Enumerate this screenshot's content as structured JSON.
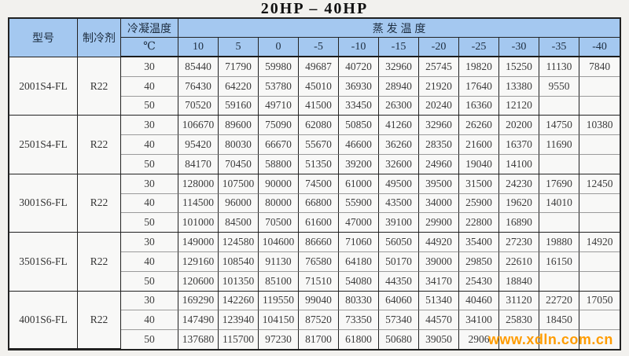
{
  "page": {
    "title": "20HP – 40HP",
    "watermark": "www.xdln.com.cn"
  },
  "colors": {
    "header_bg": "#a4c8f0",
    "watermark_orange": "#ff9c00",
    "grid_dark": "#222222",
    "grid_gray": "#9b9b9b"
  },
  "table": {
    "headers": {
      "model": "型号",
      "refrigerant": "制冷剂",
      "condensing": "冷凝温度",
      "condensing_unit": "℃",
      "evaporating": "蒸 发 温 度"
    },
    "evap_temps": [
      "10",
      "5",
      "0",
      "-5",
      "-10",
      "-15",
      "-20",
      "-25",
      "-30",
      "-35",
      "-40"
    ],
    "blocks": [
      {
        "model": "2001S4-FL",
        "refrigerant": "R22",
        "rows": [
          {
            "cond": "30",
            "values": [
              "85440",
              "71790",
              "59980",
              "49687",
              "40720",
              "32960",
              "25745",
              "19820",
              "15250",
              "11130",
              "7840"
            ]
          },
          {
            "cond": "40",
            "values": [
              "76430",
              "64220",
              "53780",
              "45010",
              "36930",
              "28940",
              "21920",
              "17640",
              "13380",
              "9550",
              ""
            ]
          },
          {
            "cond": "50",
            "values": [
              "70520",
              "59160",
              "49710",
              "41500",
              "33450",
              "26300",
              "20240",
              "16360",
              "12120",
              "",
              ""
            ]
          }
        ]
      },
      {
        "model": "2501S4-FL",
        "refrigerant": "R22",
        "rows": [
          {
            "cond": "30",
            "values": [
              "106670",
              "89600",
              "75090",
              "62080",
              "50850",
              "41260",
              "32960",
              "26260",
              "20200",
              "14750",
              "10380"
            ]
          },
          {
            "cond": "40",
            "values": [
              "95420",
              "80030",
              "66670",
              "55670",
              "46600",
              "36260",
              "28350",
              "21600",
              "16370",
              "11690",
              ""
            ]
          },
          {
            "cond": "50",
            "values": [
              "84170",
              "70450",
              "58800",
              "51350",
              "39200",
              "32600",
              "24960",
              "19040",
              "14100",
              "",
              ""
            ]
          }
        ]
      },
      {
        "model": "3001S6-FL",
        "refrigerant": "R22",
        "rows": [
          {
            "cond": "30",
            "values": [
              "128000",
              "107500",
              "90000",
              "74500",
              "61000",
              "49500",
              "39500",
              "31500",
              "24230",
              "17690",
              "12450"
            ]
          },
          {
            "cond": "40",
            "values": [
              "114500",
              "96000",
              "80000",
              "66800",
              "55900",
              "43500",
              "34000",
              "25900",
              "19620",
              "14010",
              ""
            ]
          },
          {
            "cond": "50",
            "values": [
              "101000",
              "84500",
              "70500",
              "61600",
              "47000",
              "39100",
              "29900",
              "22800",
              "16890",
              "",
              ""
            ]
          }
        ]
      },
      {
        "model": "3501S6-FL",
        "refrigerant": "R22",
        "rows": [
          {
            "cond": "30",
            "values": [
              "149000",
              "124580",
              "104600",
              "86660",
              "71060",
              "56050",
              "44920",
              "35400",
              "27230",
              "19880",
              "14920"
            ]
          },
          {
            "cond": "40",
            "values": [
              "129160",
              "108540",
              "91130",
              "76580",
              "64180",
              "50170",
              "39000",
              "29850",
              "22610",
              "16150",
              ""
            ]
          },
          {
            "cond": "50",
            "values": [
              "120600",
              "101350",
              "85100",
              "71510",
              "54080",
              "44350",
              "34170",
              "25430",
              "18840",
              "",
              ""
            ]
          }
        ]
      },
      {
        "model": "4001S6-FL",
        "refrigerant": "R22",
        "rows": [
          {
            "cond": "30",
            "values": [
              "169290",
              "142260",
              "119550",
              "99040",
              "80330",
              "64060",
              "51340",
              "40460",
              "31120",
              "22720",
              "17050"
            ]
          },
          {
            "cond": "40",
            "values": [
              "147490",
              "123940",
              "104150",
              "87520",
              "73350",
              "57340",
              "44570",
              "34100",
              "25830",
              "18450",
              ""
            ]
          },
          {
            "cond": "50",
            "values": [
              "137680",
              "115700",
              "97230",
              "81700",
              "61800",
              "50680",
              "39050",
              "2906",
              "",
              "",
              ""
            ]
          }
        ]
      }
    ]
  }
}
